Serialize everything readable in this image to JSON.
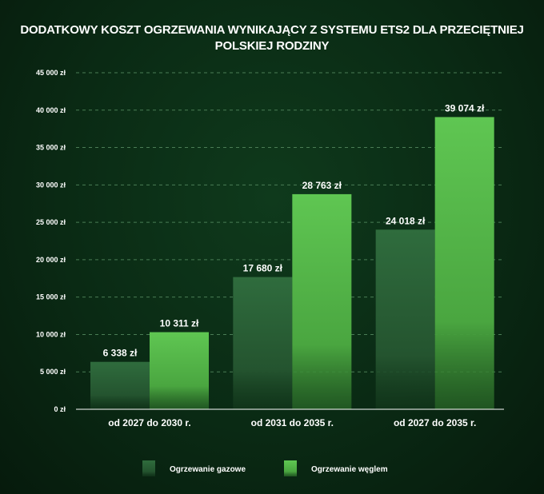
{
  "chart_data": {
    "type": "bar",
    "title": "DODATKOWY KOSZT OGRZEWANIA WYNIKAJĄCY Z SYSTEMU ETS2 DLA PRZECIĘTNIEJ POLSKIEJ RODZINY",
    "title_lines": [
      "DODATKOWY KOSZT OGRZEWANIA WYNIKAJĄCY Z SYSTEMU ETS2 DLA PRZECIĘTNIEJ",
      "POLSKIEJ RODZINY"
    ],
    "categories": [
      "od 2027 do 2030 r.",
      "od 2031 do 2035 r.",
      "od 2027 do 2035 r."
    ],
    "series": [
      {
        "name": "Ogrzewanie gazowe",
        "values": [
          6338,
          17680,
          24018
        ],
        "labels": [
          "6 338 zł",
          "17 680 zł",
          "24 018 zł"
        ],
        "color": "#2e6a3c"
      },
      {
        "name": "Ogrzewanie węglem",
        "values": [
          10311,
          28763,
          39074
        ],
        "labels": [
          "10 311 zł",
          "28 763 zł",
          "39 074 zł"
        ],
        "color": "#5cc04f"
      }
    ],
    "ylim": [
      0,
      45000
    ],
    "yticks": [
      0,
      5000,
      10000,
      15000,
      20000,
      25000,
      30000,
      35000,
      40000,
      45000
    ],
    "ytick_labels": [
      "0 zł",
      "5 000 zł",
      "10 000 zł",
      "15 000 zł",
      "20 000 zł",
      "25 000 zł",
      "30 000 zł",
      "35 000 zł",
      "40 000 zł",
      "45 000 zł"
    ],
    "grid": true,
    "legend_position": "bottom-center"
  }
}
